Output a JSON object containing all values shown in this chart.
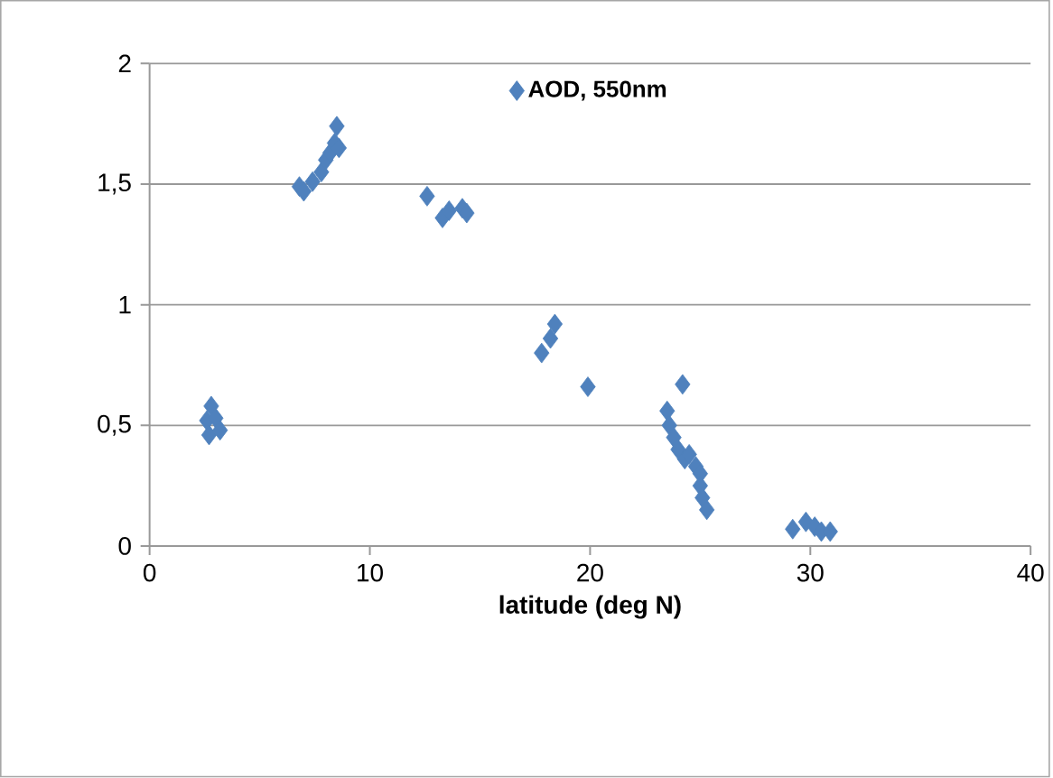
{
  "chart_data": {
    "type": "scatter",
    "xlabel": "latitude (deg N)",
    "x": [
      2.6,
      2.7,
      2.8,
      3.0,
      3.2,
      6.8,
      7.0,
      7.4,
      7.8,
      8.0,
      8.2,
      8.4,
      8.5,
      8.6,
      12.6,
      13.3,
      13.6,
      14.2,
      14.4,
      17.8,
      18.2,
      18.4,
      19.9,
      23.5,
      23.6,
      23.8,
      24.0,
      24.2,
      24.3,
      24.5,
      24.8,
      25.0,
      25.0,
      25.1,
      25.3,
      29.2,
      29.8,
      30.2,
      30.5,
      30.9
    ],
    "series": [
      {
        "name": "AOD, 550nm",
        "color": "#4f81bd",
        "values": [
          0.52,
          0.46,
          0.58,
          0.53,
          0.48,
          1.49,
          1.47,
          1.51,
          1.55,
          1.6,
          1.63,
          1.67,
          1.74,
          1.65,
          1.45,
          1.36,
          1.39,
          1.4,
          1.38,
          0.8,
          0.86,
          0.92,
          0.66,
          0.56,
          0.5,
          0.45,
          0.4,
          0.67,
          0.36,
          0.38,
          0.33,
          0.3,
          0.25,
          0.2,
          0.15,
          0.07,
          0.1,
          0.08,
          0.06,
          0.06
        ]
      }
    ],
    "xlim": [
      0,
      40
    ],
    "xticks": [
      0,
      10,
      20,
      30,
      40
    ],
    "ylim": [
      0,
      2
    ],
    "yticks": [
      0,
      {
        "value": 0.5,
        "label": "0,5"
      },
      1,
      {
        "value": 1.5,
        "label": "1,5"
      },
      2
    ],
    "grid": "y",
    "legend": "top",
    "marker": "diamond"
  }
}
